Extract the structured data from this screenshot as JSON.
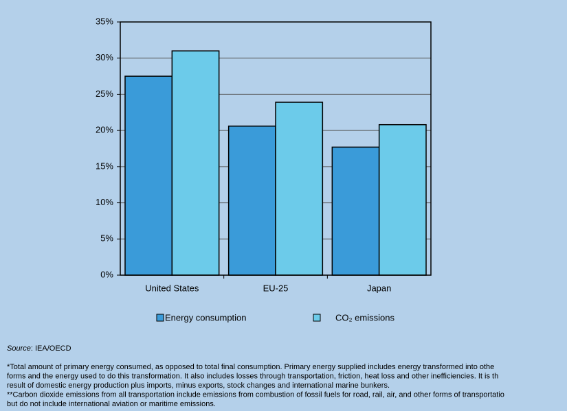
{
  "chart_data": {
    "type": "bar",
    "categories": [
      "United States",
      "EU-25",
      "Japan"
    ],
    "series": [
      {
        "name": "Energy consumption",
        "color": "#3a9bd9",
        "values": [
          27.5,
          20.6,
          17.7
        ]
      },
      {
        "name": "CO₂ emissions",
        "color": "#6ccbea",
        "values": [
          31,
          23.9,
          20.8
        ]
      }
    ],
    "ylim": [
      0,
      35
    ],
    "yticks": [
      {
        "value": 0,
        "label": "0%"
      },
      {
        "value": 5,
        "label": "5%"
      },
      {
        "value": 10,
        "label": "10%"
      },
      {
        "value": 15,
        "label": "15%"
      },
      {
        "value": 20,
        "label": "20%"
      },
      {
        "value": 25,
        "label": "25%"
      },
      {
        "value": 30,
        "label": "30%"
      },
      {
        "value": 35,
        "label": "35%"
      }
    ],
    "grid": true
  },
  "source": {
    "label": "Source",
    "text": ": IEA/OECD"
  },
  "footnotes": [
    "*Total amount of primary energy consumed, as opposed to total final consumption. Primary energy supplied includes energy transformed into othe",
    "forms and the energy used to do this transformation. It also includes losses through transportation, friction, heat loss and other inefficiencies. It is th",
    "result of domestic energy production plus imports, minus exports, stock changes and international marine bunkers.",
    "**Carbon dioxide emissions from all transportation include emissions from combustion of fossil fuels for road, rail, air, and other forms of transportatio",
    "but do not include international aviation or maritime emissions."
  ]
}
